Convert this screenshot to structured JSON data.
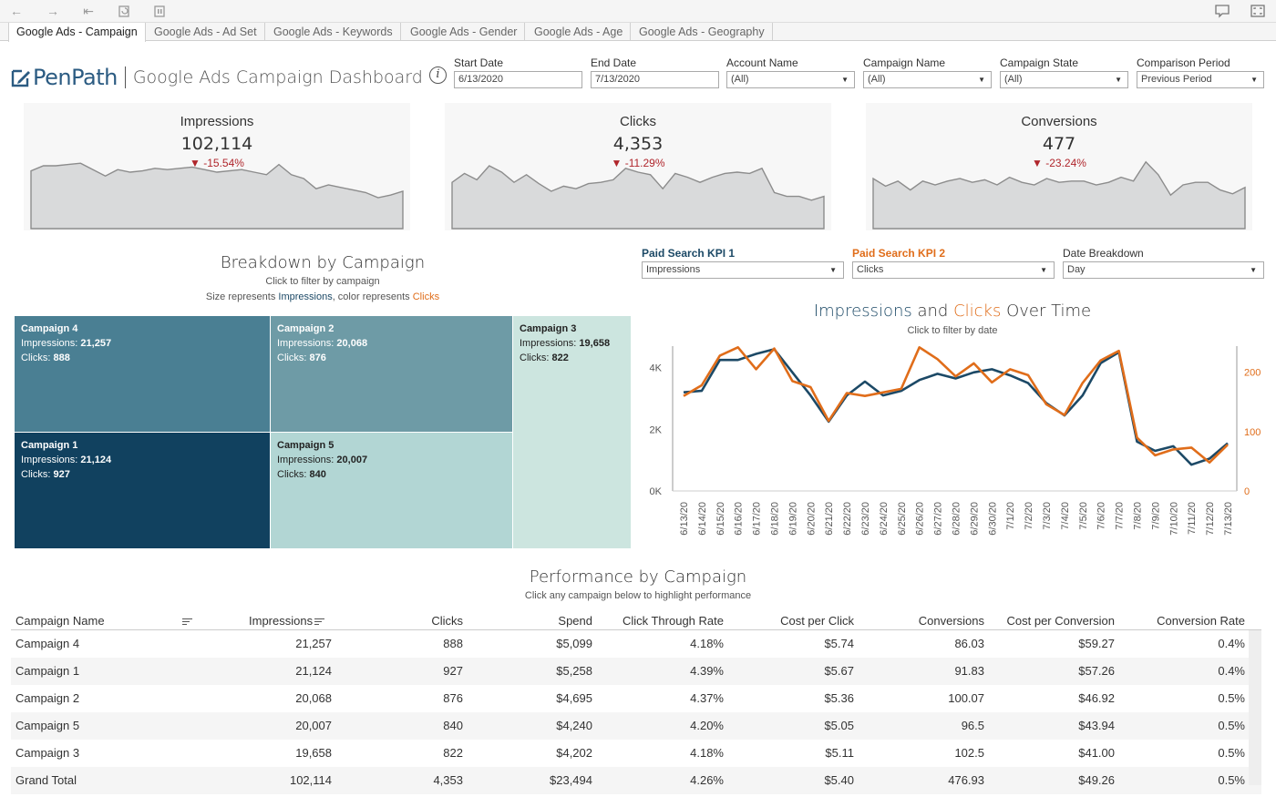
{
  "toolbar": {
    "icons": [
      "back-icon",
      "forward-icon",
      "first-icon",
      "refresh-icon",
      "pause-icon",
      "comment-icon",
      "fullscreen-icon"
    ]
  },
  "tabs": [
    {
      "label": "Google Ads - Campaign",
      "active": true
    },
    {
      "label": "Google Ads - Ad Set",
      "active": false
    },
    {
      "label": "Google Ads - Keywords",
      "active": false
    },
    {
      "label": "Google Ads - Gender",
      "active": false
    },
    {
      "label": "Google Ads - Age",
      "active": false
    },
    {
      "label": "Google Ads - Geography",
      "active": false
    }
  ],
  "header": {
    "logo": "PenPath",
    "title": "Google Ads Campaign Dashboard",
    "info": "i"
  },
  "filters": {
    "start_date": {
      "label": "Start Date",
      "value": "6/13/2020"
    },
    "end_date": {
      "label": "End Date",
      "value": "7/13/2020"
    },
    "account_name": {
      "label": "Account Name",
      "value": "(All)"
    },
    "campaign_name": {
      "label": "Campaign Name",
      "value": "(All)"
    },
    "campaign_state": {
      "label": "Campaign State",
      "value": "(All)"
    },
    "comparison_period": {
      "label": "Comparison Period",
      "value": "Previous Period"
    }
  },
  "kpis": [
    {
      "title": "Impressions",
      "value": "102,114",
      "delta": "▼ -15.54%"
    },
    {
      "title": "Clicks",
      "value": "4,353",
      "delta": "▼ -11.29%"
    },
    {
      "title": "Conversions",
      "value": "477",
      "delta": "▼ -23.24%"
    }
  ],
  "sparklines": [
    [
      3.1,
      3.5,
      3.5,
      3.6,
      3.7,
      3.2,
      2.7,
      3.2,
      3.0,
      3.1,
      3.3,
      3.2,
      3.3,
      3.4,
      3.2,
      3.0,
      3.1,
      3.2,
      3.0,
      2.8,
      3.6,
      2.8,
      2.5,
      1.7,
      2.0,
      1.8,
      1.6,
      1.4,
      1.0,
      1.2,
      1.5
    ],
    [
      2.2,
      2.9,
      2.4,
      3.5,
      3.0,
      2.2,
      2.8,
      2.1,
      1.5,
      1.9,
      1.7,
      2.1,
      2.2,
      2.4,
      3.3,
      3.0,
      2.8,
      1.7,
      2.9,
      2.6,
      2.2,
      2.6,
      2.9,
      3.0,
      2.9,
      3.3,
      1.4,
      1.1,
      1.1,
      0.8,
      1.1
    ],
    [
      2.5,
      1.9,
      2.3,
      1.6,
      2.3,
      2.0,
      2.3,
      2.5,
      2.2,
      2.4,
      2.0,
      2.6,
      2.2,
      2.0,
      2.5,
      2.2,
      2.3,
      2.3,
      2.0,
      2.2,
      2.6,
      2.3,
      3.8,
      2.8,
      1.2,
      2.0,
      2.2,
      2.2,
      1.6,
      1.3,
      1.8
    ]
  ],
  "breakdown": {
    "title": "Breakdown by Campaign",
    "subtitle": "Click to filter by campaign",
    "size_prefix": "Size represents ",
    "size_word": "Impressions",
    "color_mid": ", color represents ",
    "color_word": "Clicks",
    "cells": [
      {
        "name": "Campaign 4",
        "impressions_label": "Impressions: ",
        "impressions": "21,257",
        "clicks_label": "Clicks: ",
        "clicks": "888"
      },
      {
        "name": "Campaign 2",
        "impressions_label": "Impressions: ",
        "impressions": "20,068",
        "clicks_label": "Clicks: ",
        "clicks": "876"
      },
      {
        "name": "Campaign 3",
        "impressions_label": "Impressions: ",
        "impressions": "19,658",
        "clicks_label": "Clicks: ",
        "clicks": "822"
      },
      {
        "name": "Campaign 1",
        "impressions_label": "Impressions: ",
        "impressions": "21,124",
        "clicks_label": "Clicks: ",
        "clicks": "927"
      },
      {
        "name": "Campaign 5",
        "impressions_label": "Impressions: ",
        "impressions": "20,007",
        "clicks_label": "Clicks: ",
        "clicks": "840"
      }
    ],
    "colors": {
      "c4": "#4a7f93",
      "c2": "#6e9ba6",
      "c3": "#cce5df",
      "c1": "#11415f",
      "c5": "#b2d6d4"
    }
  },
  "selectors": {
    "kpi1": {
      "label": "Paid Search KPI 1",
      "value": "Impressions"
    },
    "kpi2": {
      "label": "Paid Search KPI 2",
      "value": "Clicks"
    },
    "breakdown": {
      "label": "Date Breakdown",
      "value": "Day"
    }
  },
  "over_time": {
    "title_a": "Impressions",
    "title_and": " and ",
    "title_b": "Clicks",
    "title_rest": " Over Time",
    "subtitle": "Click to filter by date"
  },
  "chart_data": {
    "type": "line",
    "title": "Impressions and Clicks Over Time",
    "x": [
      "6/13/20",
      "6/14/20",
      "6/15/20",
      "6/16/20",
      "6/17/20",
      "6/18/20",
      "6/19/20",
      "6/20/20",
      "6/21/20",
      "6/22/20",
      "6/23/20",
      "6/24/20",
      "6/25/20",
      "6/26/20",
      "6/27/20",
      "6/28/20",
      "6/29/20",
      "6/30/20",
      "7/1/20",
      "7/2/20",
      "7/3/20",
      "7/4/20",
      "7/5/20",
      "7/6/20",
      "7/7/20",
      "7/8/20",
      "7/9/20",
      "7/10/20",
      "7/11/20",
      "7/12/20",
      "7/13/20"
    ],
    "series": [
      {
        "name": "Impressions",
        "axis": "left",
        "color": "#1c4966",
        "values": [
          3200,
          3250,
          4250,
          4250,
          4450,
          4600,
          3850,
          3100,
          2250,
          3100,
          3550,
          3100,
          3250,
          3600,
          3800,
          3650,
          3850,
          3950,
          3750,
          3500,
          2850,
          2450,
          3100,
          4150,
          4500,
          1600,
          1300,
          1450,
          850,
          1050,
          1550
        ]
      },
      {
        "name": "Clicks",
        "axis": "right",
        "color": "#e06d1a",
        "values": [
          160,
          178,
          228,
          242,
          205,
          240,
          185,
          175,
          118,
          165,
          160,
          166,
          172,
          242,
          222,
          193,
          215,
          183,
          205,
          195,
          146,
          128,
          182,
          220,
          236,
          90,
          60,
          70,
          73,
          48,
          78
        ]
      }
    ],
    "y_left": {
      "ticks": [
        "0K",
        "2K",
        "4K"
      ],
      "range": [
        0,
        4700
      ]
    },
    "y_right": {
      "ticks": [
        "0",
        "100",
        "200"
      ],
      "range": [
        0,
        244
      ]
    }
  },
  "performance": {
    "title": "Performance by Campaign",
    "subtitle": "Click any campaign below to highlight performance",
    "columns": [
      "Campaign Name",
      "Impressions",
      "Clicks",
      "Spend",
      "Click Through Rate",
      "Cost per Click",
      "Conversions",
      "Cost per Conversion",
      "Conversion Rate"
    ],
    "rows": [
      [
        "Campaign 4",
        "21,257",
        "888",
        "$5,099",
        "4.18%",
        "$5.74",
        "86.03",
        "$59.27",
        "0.4%"
      ],
      [
        "Campaign 1",
        "21,124",
        "927",
        "$5,258",
        "4.39%",
        "$5.67",
        "91.83",
        "$57.26",
        "0.4%"
      ],
      [
        "Campaign 2",
        "20,068",
        "876",
        "$4,695",
        "4.37%",
        "$5.36",
        "100.07",
        "$46.92",
        "0.5%"
      ],
      [
        "Campaign 5",
        "20,007",
        "840",
        "$4,240",
        "4.20%",
        "$5.05",
        "96.5",
        "$43.94",
        "0.5%"
      ],
      [
        "Campaign 3",
        "19,658",
        "822",
        "$4,202",
        "4.18%",
        "$5.11",
        "102.5",
        "$41.00",
        "0.5%"
      ]
    ],
    "total": [
      "Grand Total",
      "102,114",
      "4,353",
      "$23,494",
      "4.26%",
      "$5.40",
      "476.93",
      "$49.26",
      "0.5%"
    ]
  }
}
